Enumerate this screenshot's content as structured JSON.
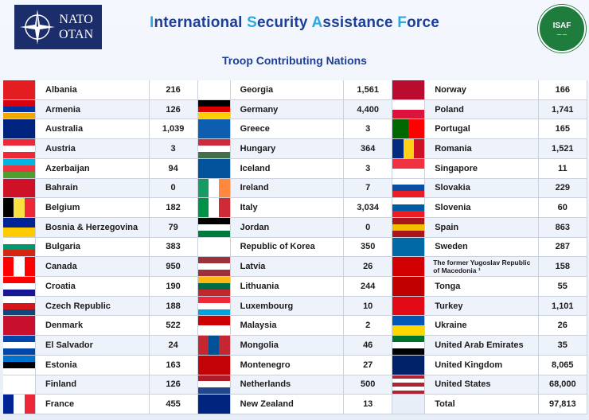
{
  "header": {
    "nato_logo": [
      "NATO",
      "OTAN"
    ],
    "title_parts": [
      {
        "text": "I",
        "cap": true
      },
      {
        "text": "nternational ",
        "cap": false
      },
      {
        "text": "S",
        "cap": true
      },
      {
        "text": "ecurity ",
        "cap": false
      },
      {
        "text": "A",
        "cap": true
      },
      {
        "text": "ssistance ",
        "cap": false
      },
      {
        "text": "F",
        "cap": true
      },
      {
        "text": "orce",
        "cap": false
      }
    ],
    "subtitle": "Troop Contributing Nations",
    "isaf_logo": "ISAF"
  },
  "columns": [
    [
      {
        "name": "Albania",
        "count": "216",
        "flag": "albania-flag-icon",
        "colors": [
          "#e41e20"
        ]
      },
      {
        "name": "Armenia",
        "count": "126",
        "flag": "armenia-flag-icon",
        "colors": [
          "#d90012",
          "#0033a0",
          "#f2a800"
        ]
      },
      {
        "name": "Australia",
        "count": "1,039",
        "flag": "australia-flag-icon",
        "colors": [
          "#00247d"
        ]
      },
      {
        "name": "Austria",
        "count": "3",
        "flag": "austria-flag-icon",
        "colors": [
          "#ed2939",
          "#ffffff",
          "#ed2939"
        ]
      },
      {
        "name": "Azerbaijan",
        "count": "94",
        "flag": "azerbaijan-flag-icon",
        "colors": [
          "#00b5e2",
          "#ef3340",
          "#509e2f"
        ]
      },
      {
        "name": "Bahrain",
        "count": "0",
        "flag": "bahrain-flag-icon",
        "colors": [
          "#ce1126"
        ]
      },
      {
        "name": "Belgium",
        "count": "182",
        "flag": "belgium-flag-icon",
        "colors": [
          "#000000",
          "#fae042",
          "#ed2939"
        ]
      },
      {
        "name": "Bosnia & Herzegovina",
        "count": "79",
        "flag": "bosnia-flag-icon",
        "colors": [
          "#002395",
          "#fecb00"
        ]
      },
      {
        "name": "Bulgaria",
        "count": "383",
        "flag": "bulgaria-flag-icon",
        "colors": [
          "#ffffff",
          "#00966e",
          "#d62612"
        ]
      },
      {
        "name": "Canada",
        "count": "950",
        "flag": "canada-flag-icon",
        "colors": [
          "#ff0000",
          "#ffffff",
          "#ff0000"
        ]
      },
      {
        "name": "Croatia",
        "count": "190",
        "flag": "croatia-flag-icon",
        "colors": [
          "#ff0000",
          "#ffffff",
          "#171796"
        ]
      },
      {
        "name": "Czech Republic",
        "count": "188",
        "flag": "czech-flag-icon",
        "colors": [
          "#ffffff",
          "#d7141a",
          "#11457e"
        ]
      },
      {
        "name": "Denmark",
        "count": "522",
        "flag": "denmark-flag-icon",
        "colors": [
          "#c8102e"
        ]
      },
      {
        "name": "El Salvador",
        "count": "24",
        "flag": "el-salvador-flag-icon",
        "colors": [
          "#0047ab",
          "#ffffff",
          "#0047ab"
        ]
      },
      {
        "name": "Estonia",
        "count": "163",
        "flag": "estonia-flag-icon",
        "colors": [
          "#0072ce",
          "#000000",
          "#ffffff"
        ]
      },
      {
        "name": "Finland",
        "count": "126",
        "flag": "finland-flag-icon",
        "colors": [
          "#ffffff"
        ]
      },
      {
        "name": "France",
        "count": "455",
        "flag": "france-flag-icon",
        "colors": [
          "#002395",
          "#ffffff",
          "#ed2939"
        ]
      }
    ],
    [
      {
        "name": "Georgia",
        "count": "1,561",
        "flag": "georgia-flag-icon",
        "colors": [
          "#ffffff"
        ]
      },
      {
        "name": "Germany",
        "count": "4,400",
        "flag": "germany-flag-icon",
        "colors": [
          "#000000",
          "#dd0000",
          "#ffce00"
        ]
      },
      {
        "name": "Greece",
        "count": "3",
        "flag": "greece-flag-icon",
        "colors": [
          "#0d5eaf"
        ]
      },
      {
        "name": "Hungary",
        "count": "364",
        "flag": "hungary-flag-icon",
        "colors": [
          "#cd2a3e",
          "#ffffff",
          "#436f4d"
        ]
      },
      {
        "name": "Iceland",
        "count": "3",
        "flag": "iceland-flag-icon",
        "colors": [
          "#02529c"
        ]
      },
      {
        "name": "Ireland",
        "count": "7",
        "flag": "ireland-flag-icon",
        "colors": [
          "#169b62",
          "#ffffff",
          "#ff883e"
        ]
      },
      {
        "name": "Italy",
        "count": "3,034",
        "flag": "italy-flag-icon",
        "colors": [
          "#009246",
          "#ffffff",
          "#ce2b37"
        ]
      },
      {
        "name": "Jordan",
        "count": "0",
        "flag": "jordan-flag-icon",
        "colors": [
          "#000000",
          "#ffffff",
          "#007a3d"
        ]
      },
      {
        "name": "Republic of Korea",
        "count": "350",
        "flag": "korea-flag-icon",
        "colors": [
          "#ffffff"
        ]
      },
      {
        "name": "Latvia",
        "count": "26",
        "flag": "latvia-flag-icon",
        "colors": [
          "#9e3039",
          "#ffffff",
          "#9e3039"
        ]
      },
      {
        "name": "Lithuania",
        "count": "244",
        "flag": "lithuania-flag-icon",
        "colors": [
          "#fdb913",
          "#006a44",
          "#c1272d"
        ]
      },
      {
        "name": "Luxembourg",
        "count": "10",
        "flag": "luxembourg-flag-icon",
        "colors": [
          "#ed2939",
          "#ffffff",
          "#00a1de"
        ]
      },
      {
        "name": "Malaysia",
        "count": "2",
        "flag": "malaysia-flag-icon",
        "colors": [
          "#cc0001",
          "#ffffff"
        ]
      },
      {
        "name": "Mongolia",
        "count": "46",
        "flag": "mongolia-flag-icon",
        "colors": [
          "#c4272f",
          "#015197",
          "#c4272f"
        ]
      },
      {
        "name": "Montenegro",
        "count": "27",
        "flag": "montenegro-flag-icon",
        "colors": [
          "#c40308"
        ]
      },
      {
        "name": "Netherlands",
        "count": "500",
        "flag": "netherlands-flag-icon",
        "colors": [
          "#ae1c28",
          "#ffffff",
          "#21468b"
        ]
      },
      {
        "name": "New Zealand",
        "count": "13",
        "flag": "new-zealand-flag-icon",
        "colors": [
          "#00247d"
        ]
      }
    ],
    [
      {
        "name": "Norway",
        "count": "166",
        "flag": "norway-flag-icon",
        "colors": [
          "#ba0c2f"
        ]
      },
      {
        "name": "Poland",
        "count": "1,741",
        "flag": "poland-flag-icon",
        "colors": [
          "#ffffff",
          "#dc143c"
        ]
      },
      {
        "name": "Portugal",
        "count": "165",
        "flag": "portugal-flag-icon",
        "colors": [
          "#006600",
          "#ff0000"
        ]
      },
      {
        "name": "Romania",
        "count": "1,521",
        "flag": "romania-flag-icon",
        "colors": [
          "#002b7f",
          "#fcd116",
          "#ce1126"
        ]
      },
      {
        "name": "Singapore",
        "count": "11",
        "flag": "singapore-flag-icon",
        "colors": [
          "#ef3340",
          "#ffffff"
        ]
      },
      {
        "name": "Slovakia",
        "count": "229",
        "flag": "slovakia-flag-icon",
        "colors": [
          "#ffffff",
          "#0b4ea2",
          "#ee1c25"
        ]
      },
      {
        "name": "Slovenia",
        "count": "60",
        "flag": "slovenia-flag-icon",
        "colors": [
          "#ffffff",
          "#005da4",
          "#ed1c24"
        ]
      },
      {
        "name": "Spain",
        "count": "863",
        "flag": "spain-flag-icon",
        "colors": [
          "#aa151b",
          "#f1bf00",
          "#aa151b"
        ]
      },
      {
        "name": "Sweden",
        "count": "287",
        "flag": "sweden-flag-icon",
        "colors": [
          "#006aa7"
        ]
      },
      {
        "name": "The former Yugoslav Republic of Macedonia ¹",
        "count": "158",
        "flag": "macedonia-flag-icon",
        "colors": [
          "#d20000"
        ],
        "small": true
      },
      {
        "name": "Tonga",
        "count": "55",
        "flag": "tonga-flag-icon",
        "colors": [
          "#c10000"
        ]
      },
      {
        "name": "Turkey",
        "count": "1,101",
        "flag": "turkey-flag-icon",
        "colors": [
          "#e30a17"
        ]
      },
      {
        "name": "Ukraine",
        "count": "26",
        "flag": "ukraine-flag-icon",
        "colors": [
          "#0057b7",
          "#ffd700"
        ]
      },
      {
        "name": "United Arab Emirates",
        "count": "35",
        "flag": "uae-flag-icon",
        "colors": [
          "#00732f",
          "#ffffff",
          "#000000"
        ]
      },
      {
        "name": "United Kingdom",
        "count": "8,065",
        "flag": "uk-flag-icon",
        "colors": [
          "#012169"
        ]
      },
      {
        "name": "United States",
        "count": "68,000",
        "flag": "us-flag-icon",
        "colors": [
          "#b22234",
          "#ffffff",
          "#b22234",
          "#ffffff",
          "#b22234"
        ]
      },
      {
        "name": "Total",
        "count": "97,813",
        "flag": "",
        "colors": []
      }
    ]
  ]
}
